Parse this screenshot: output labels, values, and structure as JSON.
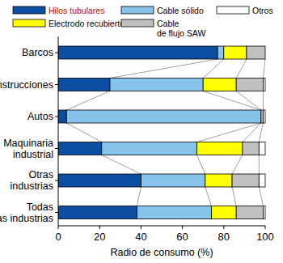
{
  "chart_data": {
    "type": "bar",
    "orientation": "horizontal",
    "stacked": true,
    "categories": [
      "Barcos",
      "Construcciones",
      "Autos",
      "Maquinaria industrial",
      "Otras industrias",
      "Todas las industrias"
    ],
    "series": [
      {
        "name": "Hilos tubulares",
        "color": "#0b4ea2",
        "values": [
          77,
          25,
          4,
          21,
          40,
          38
        ]
      },
      {
        "name": "Cable sólido",
        "color": "#87c3ea",
        "values": [
          3,
          45,
          94,
          46,
          31,
          36
        ]
      },
      {
        "name": "Electrodo recubierto",
        "color": "#ffff00",
        "values": [
          11,
          16,
          0,
          22,
          13,
          12
        ]
      },
      {
        "name": "Cable de flujo SAW",
        "color": "#c0c0c0",
        "values": [
          9,
          13,
          1,
          8,
          13,
          13
        ]
      },
      {
        "name": "Otros",
        "color": "#ffffff",
        "values": [
          0,
          1,
          1,
          3,
          3,
          1
        ]
      }
    ],
    "x_label": "Radio de consumo (%)",
    "xlim": [
      0,
      100
    ],
    "xticks": [
      0,
      20,
      40,
      60,
      80,
      100
    ],
    "legend": "top"
  }
}
